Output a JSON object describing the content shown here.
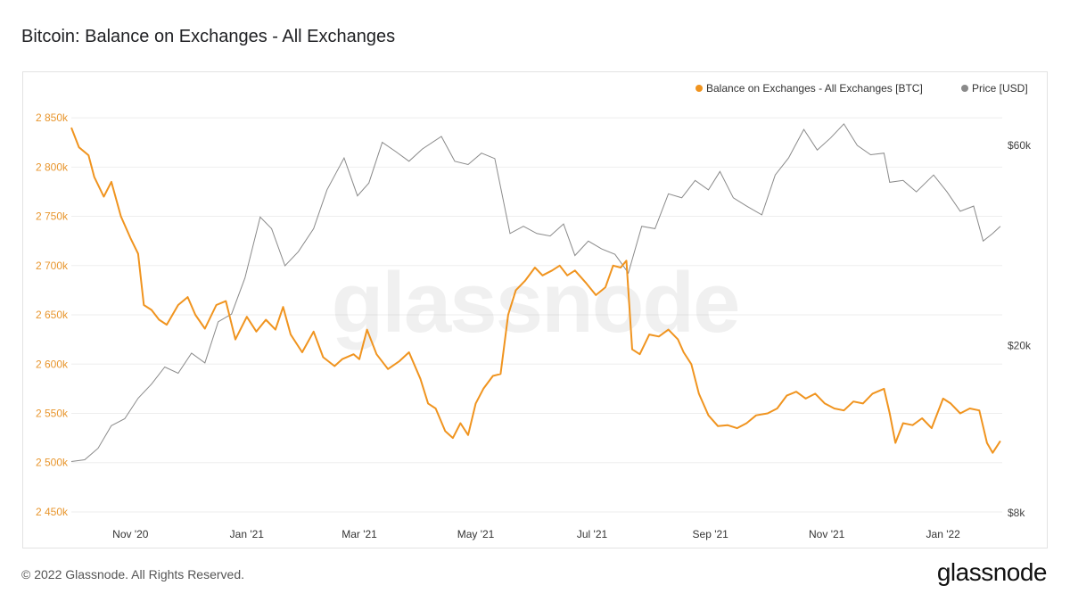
{
  "header": {
    "title": "Bitcoin: Balance on Exchanges - All Exchanges"
  },
  "footer": {
    "copyright": "© 2022 Glassnode. All Rights Reserved.",
    "logo_text": "glassnode"
  },
  "watermark": "glassnode",
  "colors": {
    "balance": "#F0941F",
    "price": "#8A8A8A",
    "left_axis_text": "#E8962E",
    "grid": "#EEEEEE"
  },
  "chart_data": {
    "type": "line",
    "title": "Bitcoin: Balance on Exchanges - All Exchanges",
    "legend_position": "top-right",
    "grid": true,
    "x": {
      "type": "date",
      "range": [
        "2020-10-01",
        "2022-02-01"
      ],
      "ticks": [
        {
          "date": "2020-11-01",
          "label": "Nov '20"
        },
        {
          "date": "2021-01-01",
          "label": "Jan '21"
        },
        {
          "date": "2021-03-01",
          "label": "Mar '21"
        },
        {
          "date": "2021-05-01",
          "label": "May '21"
        },
        {
          "date": "2021-07-01",
          "label": "Jul '21"
        },
        {
          "date": "2021-09-01",
          "label": "Sep '21"
        },
        {
          "date": "2021-11-01",
          "label": "Nov '21"
        },
        {
          "date": "2022-01-01",
          "label": "Jan '22"
        }
      ]
    },
    "y_left": {
      "ylim": [
        2440,
        2870
      ],
      "ticks": [
        {
          "value": 2450,
          "label": "2 450k"
        },
        {
          "value": 2500,
          "label": "2 500k"
        },
        {
          "value": 2550,
          "label": "2 550k"
        },
        {
          "value": 2600,
          "label": "2 600k"
        },
        {
          "value": 2650,
          "label": "2 650k"
        },
        {
          "value": 2700,
          "label": "2 700k"
        },
        {
          "value": 2750,
          "label": "2 750k"
        },
        {
          "value": 2800,
          "label": "2 800k"
        },
        {
          "value": 2850,
          "label": "2 850k"
        }
      ]
    },
    "y_right": {
      "scale": "log",
      "ticks": [
        {
          "value": 8000,
          "label": "$8k"
        },
        {
          "value": 20000,
          "label": "$20k"
        },
        {
          "value": 60000,
          "label": "$60k"
        }
      ]
    },
    "series": [
      {
        "name": "Balance on Exchanges - All Exchanges [BTC]",
        "axis": "left",
        "points": [
          [
            "2020-10-01",
            2840
          ],
          [
            "2020-10-05",
            2820
          ],
          [
            "2020-10-10",
            2812
          ],
          [
            "2020-10-13",
            2790
          ],
          [
            "2020-10-18",
            2770
          ],
          [
            "2020-10-22",
            2785
          ],
          [
            "2020-10-27",
            2750
          ],
          [
            "2020-11-01",
            2728
          ],
          [
            "2020-11-05",
            2712
          ],
          [
            "2020-11-08",
            2660
          ],
          [
            "2020-11-12",
            2655
          ],
          [
            "2020-11-16",
            2645
          ],
          [
            "2020-11-20",
            2640
          ],
          [
            "2020-11-26",
            2660
          ],
          [
            "2020-12-01",
            2668
          ],
          [
            "2020-12-05",
            2650
          ],
          [
            "2020-12-10",
            2636
          ],
          [
            "2020-12-16",
            2660
          ],
          [
            "2020-12-21",
            2664
          ],
          [
            "2020-12-26",
            2625
          ],
          [
            "2021-01-01",
            2648
          ],
          [
            "2021-01-06",
            2633
          ],
          [
            "2021-01-11",
            2645
          ],
          [
            "2021-01-16",
            2635
          ],
          [
            "2021-01-20",
            2658
          ],
          [
            "2021-01-24",
            2630
          ],
          [
            "2021-01-30",
            2612
          ],
          [
            "2021-02-05",
            2633
          ],
          [
            "2021-02-10",
            2607
          ],
          [
            "2021-02-16",
            2598
          ],
          [
            "2021-02-20",
            2605
          ],
          [
            "2021-02-26",
            2610
          ],
          [
            "2021-03-01",
            2605
          ],
          [
            "2021-03-05",
            2635
          ],
          [
            "2021-03-10",
            2610
          ],
          [
            "2021-03-16",
            2595
          ],
          [
            "2021-03-22",
            2603
          ],
          [
            "2021-03-27",
            2612
          ],
          [
            "2021-04-02",
            2585
          ],
          [
            "2021-04-06",
            2560
          ],
          [
            "2021-04-10",
            2555
          ],
          [
            "2021-04-15",
            2532
          ],
          [
            "2021-04-19",
            2525
          ],
          [
            "2021-04-23",
            2540
          ],
          [
            "2021-04-27",
            2528
          ],
          [
            "2021-05-01",
            2560
          ],
          [
            "2021-05-05",
            2575
          ],
          [
            "2021-05-10",
            2588
          ],
          [
            "2021-05-14",
            2590
          ],
          [
            "2021-05-18",
            2650
          ],
          [
            "2021-05-22",
            2675
          ],
          [
            "2021-05-27",
            2685
          ],
          [
            "2021-06-01",
            2698
          ],
          [
            "2021-06-05",
            2690
          ],
          [
            "2021-06-10",
            2695
          ],
          [
            "2021-06-14",
            2700
          ],
          [
            "2021-06-18",
            2690
          ],
          [
            "2021-06-22",
            2695
          ],
          [
            "2021-06-28",
            2682
          ],
          [
            "2021-07-03",
            2670
          ],
          [
            "2021-07-08",
            2678
          ],
          [
            "2021-07-12",
            2700
          ],
          [
            "2021-07-16",
            2698
          ],
          [
            "2021-07-19",
            2705
          ],
          [
            "2021-07-22",
            2615
          ],
          [
            "2021-07-26",
            2610
          ],
          [
            "2021-07-31",
            2630
          ],
          [
            "2021-08-05",
            2628
          ],
          [
            "2021-08-10",
            2635
          ],
          [
            "2021-08-15",
            2625
          ],
          [
            "2021-08-18",
            2612
          ],
          [
            "2021-08-22",
            2600
          ],
          [
            "2021-08-26",
            2570
          ],
          [
            "2021-08-31",
            2548
          ],
          [
            "2021-09-05",
            2537
          ],
          [
            "2021-09-10",
            2538
          ],
          [
            "2021-09-15",
            2535
          ],
          [
            "2021-09-20",
            2540
          ],
          [
            "2021-09-25",
            2548
          ],
          [
            "2021-10-01",
            2550
          ],
          [
            "2021-10-06",
            2555
          ],
          [
            "2021-10-11",
            2568
          ],
          [
            "2021-10-16",
            2572
          ],
          [
            "2021-10-21",
            2565
          ],
          [
            "2021-10-26",
            2570
          ],
          [
            "2021-10-31",
            2560
          ],
          [
            "2021-11-05",
            2555
          ],
          [
            "2021-11-10",
            2553
          ],
          [
            "2021-11-15",
            2562
          ],
          [
            "2021-11-20",
            2560
          ],
          [
            "2021-11-25",
            2570
          ],
          [
            "2021-12-01",
            2575
          ],
          [
            "2021-12-04",
            2550
          ],
          [
            "2021-12-07",
            2520
          ],
          [
            "2021-12-11",
            2540
          ],
          [
            "2021-12-16",
            2538
          ],
          [
            "2021-12-21",
            2545
          ],
          [
            "2021-12-26",
            2535
          ],
          [
            "2022-01-01",
            2565
          ],
          [
            "2022-01-05",
            2560
          ],
          [
            "2022-01-10",
            2550
          ],
          [
            "2022-01-15",
            2555
          ],
          [
            "2022-01-20",
            2553
          ],
          [
            "2022-01-24",
            2520
          ],
          [
            "2022-01-27",
            2510
          ],
          [
            "2022-01-31",
            2522
          ]
        ]
      },
      {
        "name": "Price [USD]",
        "axis": "right",
        "points": [
          [
            "2020-10-01",
            10600
          ],
          [
            "2020-10-08",
            10700
          ],
          [
            "2020-10-15",
            11400
          ],
          [
            "2020-10-22",
            12900
          ],
          [
            "2020-10-29",
            13400
          ],
          [
            "2020-11-05",
            15000
          ],
          [
            "2020-11-12",
            16200
          ],
          [
            "2020-11-19",
            17800
          ],
          [
            "2020-11-26",
            17200
          ],
          [
            "2020-12-03",
            19200
          ],
          [
            "2020-12-10",
            18200
          ],
          [
            "2020-12-17",
            22800
          ],
          [
            "2020-12-24",
            23800
          ],
          [
            "2020-12-31",
            29000
          ],
          [
            "2021-01-08",
            40500
          ],
          [
            "2021-01-14",
            38000
          ],
          [
            "2021-01-21",
            31000
          ],
          [
            "2021-01-28",
            33500
          ],
          [
            "2021-02-05",
            38000
          ],
          [
            "2021-02-12",
            47000
          ],
          [
            "2021-02-21",
            56000
          ],
          [
            "2021-02-28",
            45500
          ],
          [
            "2021-03-06",
            48800
          ],
          [
            "2021-03-13",
            61000
          ],
          [
            "2021-03-20",
            58000
          ],
          [
            "2021-03-27",
            55000
          ],
          [
            "2021-04-03",
            58800
          ],
          [
            "2021-04-13",
            63000
          ],
          [
            "2021-04-20",
            55000
          ],
          [
            "2021-04-27",
            54000
          ],
          [
            "2021-05-04",
            57500
          ],
          [
            "2021-05-11",
            55800
          ],
          [
            "2021-05-19",
            37000
          ],
          [
            "2021-05-26",
            38500
          ],
          [
            "2021-06-02",
            37000
          ],
          [
            "2021-06-09",
            36500
          ],
          [
            "2021-06-16",
            39000
          ],
          [
            "2021-06-22",
            32800
          ],
          [
            "2021-06-29",
            35500
          ],
          [
            "2021-07-06",
            34000
          ],
          [
            "2021-07-13",
            33000
          ],
          [
            "2021-07-20",
            29800
          ],
          [
            "2021-07-27",
            38500
          ],
          [
            "2021-08-03",
            38000
          ],
          [
            "2021-08-10",
            46000
          ],
          [
            "2021-08-17",
            45000
          ],
          [
            "2021-08-24",
            49500
          ],
          [
            "2021-08-31",
            47000
          ],
          [
            "2021-09-06",
            52000
          ],
          [
            "2021-09-13",
            45000
          ],
          [
            "2021-09-20",
            43000
          ],
          [
            "2021-09-28",
            41000
          ],
          [
            "2021-10-05",
            51000
          ],
          [
            "2021-10-12",
            56000
          ],
          [
            "2021-10-20",
            65500
          ],
          [
            "2021-10-27",
            58500
          ],
          [
            "2021-11-03",
            62500
          ],
          [
            "2021-11-10",
            67500
          ],
          [
            "2021-11-17",
            60000
          ],
          [
            "2021-11-24",
            57000
          ],
          [
            "2021-12-01",
            57500
          ],
          [
            "2021-12-04",
            49000
          ],
          [
            "2021-12-11",
            49500
          ],
          [
            "2021-12-18",
            46500
          ],
          [
            "2021-12-27",
            51000
          ],
          [
            "2022-01-03",
            46500
          ],
          [
            "2022-01-10",
            41800
          ],
          [
            "2022-01-17",
            43000
          ],
          [
            "2022-01-22",
            35500
          ],
          [
            "2022-01-27",
            37000
          ],
          [
            "2022-01-31",
            38500
          ]
        ]
      }
    ]
  }
}
